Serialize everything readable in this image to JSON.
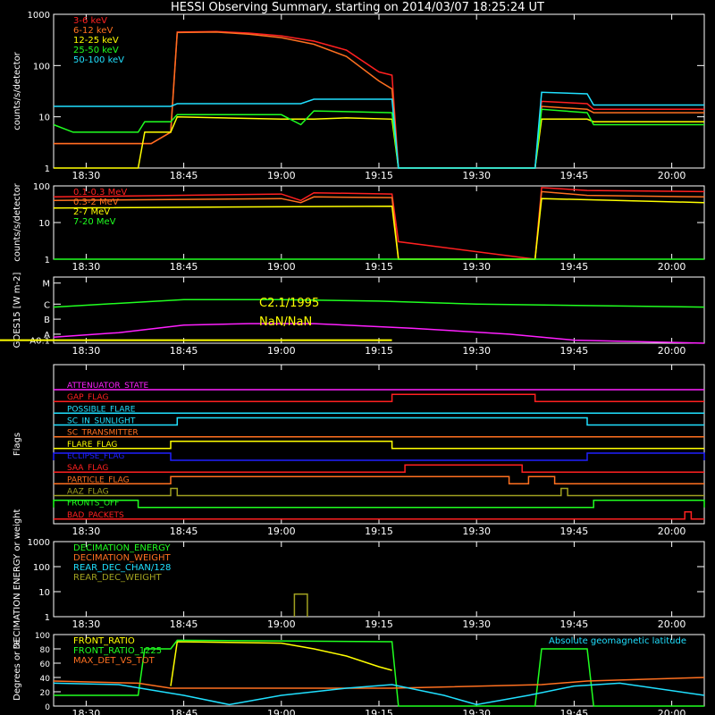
{
  "header": {
    "title": "HESSI Observing Summary, starting on 2014/03/07 18:25:24 UT"
  },
  "time_ticks": [
    "18:30",
    "18:45",
    "19:00",
    "19:15",
    "19:30",
    "19:45",
    "20:00"
  ],
  "colors": {
    "red": "#ff2020",
    "orange": "#ff7020",
    "yellow": "#ffff00",
    "green": "#20ff20",
    "cyan": "#20e0ff",
    "magenta": "#ff20ff",
    "blue": "#2020ff",
    "olive": "#a0a020",
    "white": "#ffffff"
  },
  "chart_data": [
    {
      "type": "line",
      "id": "lightcurves_low",
      "ylabel": "counts/s/detector",
      "yscale": "log",
      "ylim": [
        1,
        1000
      ],
      "yticks": [
        "1",
        "10",
        "100",
        "1000"
      ],
      "xlim": [
        "18:25",
        "20:05"
      ],
      "series": [
        {
          "name": "3-6 keV",
          "color": "#ff2020",
          "points": [
            [
              "18:25",
              3
            ],
            [
              "18:40",
              3
            ],
            [
              "18:43",
              5
            ],
            [
              "18:44",
              450
            ],
            [
              "18:50",
              460
            ],
            [
              "18:55",
              430
            ],
            [
              "19:00",
              380
            ],
            [
              "19:05",
              300
            ],
            [
              "19:10",
              200
            ],
            [
              "19:15",
              75
            ],
            [
              "19:17",
              65
            ],
            [
              "19:18",
              1
            ],
            [
              "19:39",
              1
            ],
            [
              "19:40",
              20
            ],
            [
              "19:47",
              18
            ],
            [
              "19:48",
              14
            ],
            [
              "20:05",
              14
            ]
          ]
        },
        {
          "name": "6-12 keV",
          "color": "#ff7020",
          "points": [
            [
              "18:25",
              3
            ],
            [
              "18:40",
              3
            ],
            [
              "18:43",
              5
            ],
            [
              "18:44",
              440
            ],
            [
              "18:50",
              450
            ],
            [
              "18:55",
              410
            ],
            [
              "19:00",
              350
            ],
            [
              "19:05",
              260
            ],
            [
              "19:10",
              150
            ],
            [
              "19:15",
              50
            ],
            [
              "19:17",
              35
            ],
            [
              "19:18",
              1
            ],
            [
              "19:39",
              1
            ],
            [
              "19:40",
              16
            ],
            [
              "19:47",
              14
            ],
            [
              "19:48",
              12
            ],
            [
              "20:05",
              12
            ]
          ]
        },
        {
          "name": "12-25 keV",
          "color": "#ffff00",
          "points": [
            [
              "18:25",
              1
            ],
            [
              "18:38",
              1
            ],
            [
              "18:39",
              5
            ],
            [
              "18:43",
              5
            ],
            [
              "18:44",
              10
            ],
            [
              "19:00",
              9
            ],
            [
              "19:05",
              9
            ],
            [
              "19:10",
              9.5
            ],
            [
              "19:17",
              9
            ],
            [
              "19:18",
              1
            ],
            [
              "19:39",
              1
            ],
            [
              "19:40",
              9
            ],
            [
              "19:47",
              9
            ],
            [
              "19:48",
              8
            ],
            [
              "20:05",
              8
            ]
          ]
        },
        {
          "name": "25-50 keV",
          "color": "#20ff20",
          "points": [
            [
              "18:25",
              7
            ],
            [
              "18:28",
              5
            ],
            [
              "18:38",
              5
            ],
            [
              "18:39",
              8
            ],
            [
              "18:43",
              8
            ],
            [
              "18:44",
              11
            ],
            [
              "19:00",
              11
            ],
            [
              "19:03",
              7
            ],
            [
              "19:05",
              13
            ],
            [
              "19:17",
              12
            ],
            [
              "19:18",
              1
            ],
            [
              "19:39",
              1
            ],
            [
              "19:40",
              14
            ],
            [
              "19:47",
              12
            ],
            [
              "19:48",
              7
            ],
            [
              "20:05",
              7
            ]
          ]
        },
        {
          "name": "50-100 keV",
          "color": "#20e0ff",
          "points": [
            [
              "18:25",
              16
            ],
            [
              "18:43",
              16
            ],
            [
              "18:44",
              18
            ],
            [
              "19:03",
              18
            ],
            [
              "19:05",
              22
            ],
            [
              "19:17",
              22
            ],
            [
              "19:18",
              1
            ],
            [
              "19:39",
              1
            ],
            [
              "19:40",
              30
            ],
            [
              "19:47",
              28
            ],
            [
              "19:48",
              17
            ],
            [
              "20:05",
              17
            ]
          ]
        }
      ]
    },
    {
      "type": "line",
      "id": "lightcurves_high",
      "ylabel": "counts/s/detector",
      "yscale": "log",
      "ylim": [
        1,
        100
      ],
      "yticks": [
        "1",
        "10",
        "100"
      ],
      "xlim": [
        "18:25",
        "20:05"
      ],
      "series": [
        {
          "name": "0.1-0.3 MeV",
          "color": "#ff2020",
          "points": [
            [
              "18:25",
              50
            ],
            [
              "19:00",
              60
            ],
            [
              "19:03",
              40
            ],
            [
              "19:05",
              65
            ],
            [
              "19:17",
              60
            ],
            [
              "19:18",
              3
            ],
            [
              "19:39",
              1
            ],
            [
              "19:40",
              90
            ],
            [
              "19:47",
              75
            ],
            [
              "20:05",
              70
            ]
          ]
        },
        {
          "name": "0.3-2 MeV",
          "color": "#ff7020",
          "points": [
            [
              "18:25",
              40
            ],
            [
              "19:00",
              45
            ],
            [
              "19:03",
              35
            ],
            [
              "19:05",
              50
            ],
            [
              "19:17",
              48
            ],
            [
              "19:18",
              1
            ],
            [
              "19:39",
              1
            ],
            [
              "19:40",
              70
            ],
            [
              "19:47",
              55
            ],
            [
              "20:05",
              50
            ]
          ]
        },
        {
          "name": "2-7 MeV",
          "color": "#ffff00",
          "points": [
            [
              "18:25",
              25
            ],
            [
              "19:17",
              28
            ],
            [
              "19:18",
              1
            ],
            [
              "19:39",
              1
            ],
            [
              "19:40",
              45
            ],
            [
              "20:05",
              35
            ]
          ]
        },
        {
          "name": "7-20 MeV",
          "color": "#20ff20",
          "points": [
            [
              "18:25",
              1
            ],
            [
              "20:05",
              1
            ]
          ]
        }
      ]
    },
    {
      "type": "line",
      "id": "goes",
      "ylabel": "GOES15 [W m-2]",
      "yscale": "log",
      "yticks": [
        "A0.1",
        "A",
        "B",
        "C",
        "M"
      ],
      "annotations": [
        "C2.1/1995",
        "NaN/NaN"
      ],
      "series": [
        {
          "name": "long",
          "color": "#20ff20",
          "points": [
            [
              "18:25",
              -5.8
            ],
            [
              "18:45",
              -5.3
            ],
            [
              "19:00",
              -5.3
            ],
            [
              "19:15",
              -5.4
            ],
            [
              "19:30",
              -5.6
            ],
            [
              "20:05",
              -5.8
            ]
          ]
        },
        {
          "name": "short",
          "color": "#ff20ff",
          "points": [
            [
              "18:25",
              -7.8
            ],
            [
              "18:35",
              -7.5
            ],
            [
              "18:45",
              -7.0
            ],
            [
              "18:55",
              -6.9
            ],
            [
              "19:05",
              -6.9
            ],
            [
              "19:20",
              -7.2
            ],
            [
              "19:35",
              -7.6
            ],
            [
              "19:45",
              -8.0
            ],
            [
              "20:05",
              -8.2
            ]
          ]
        },
        {
          "name": "flat",
          "color": "#ffff00",
          "points": [
            [
              "18:25",
              -8.0
            ],
            [
              "19:17",
              -8.0
            ]
          ]
        }
      ]
    },
    {
      "type": "line",
      "id": "flags",
      "ylabel": "Flags",
      "series": [
        {
          "name": "ATTENUATOR_STATE",
          "color": "#ff20ff",
          "segments": []
        },
        {
          "name": "GAP_FLAG",
          "color": "#ff2020",
          "segments": [
            [
              "19:17",
              "19:39"
            ]
          ]
        },
        {
          "name": "POSSIBLE_FLARE",
          "color": "#20e0ff",
          "segments": []
        },
        {
          "name": "SC_IN_SUNLIGHT",
          "color": "#20e0ff",
          "segments": [
            [
              "18:44",
              "19:47"
            ]
          ]
        },
        {
          "name": "SC_TRANSMITTER",
          "color": "#ff7020",
          "segments": []
        },
        {
          "name": "FLARE_FLAG",
          "color": "#ffff00",
          "segments": [
            [
              "18:43",
              "19:17"
            ]
          ]
        },
        {
          "name": "ECLIPSE_FLAG",
          "color": "#2020ff",
          "segments": [
            [
              "18:25",
              "18:43"
            ],
            [
              "19:47",
              "20:05"
            ]
          ]
        },
        {
          "name": "SAA_FLAG",
          "color": "#ff2020",
          "segments": [
            [
              "19:19",
              "19:37"
            ]
          ]
        },
        {
          "name": "PARTICLE_FLAG",
          "color": "#ff7020",
          "segments": [
            [
              "18:43",
              "19:35"
            ],
            [
              "19:38",
              "19:42"
            ]
          ]
        },
        {
          "name": "AAZ_FLAG",
          "color": "#a0a020",
          "segments": [
            [
              "18:43",
              "18:44"
            ],
            [
              "19:43",
              "19:44"
            ]
          ]
        },
        {
          "name": "FRONTS_OFF",
          "color": "#20ff20",
          "segments": [
            [
              "18:25",
              "18:38"
            ],
            [
              "19:48",
              "20:05"
            ]
          ]
        },
        {
          "name": "BAD_PACKETS",
          "color": "#ff2020",
          "segments": [
            [
              "20:02",
              "20:03"
            ]
          ]
        }
      ]
    },
    {
      "type": "line",
      "id": "decimation",
      "ylabel": "DECIMATION ENERGY or weight",
      "yscale": "log",
      "ylim": [
        1,
        1000
      ],
      "yticks": [
        "1",
        "10",
        "100",
        "1000"
      ],
      "series": [
        {
          "name": "DECIMATION_ENERGY",
          "color": "#20ff20",
          "points": []
        },
        {
          "name": "DECIMATION_WEIGHT",
          "color": "#ff7020",
          "points": []
        },
        {
          "name": "REAR_DEC_CHAN/128",
          "color": "#20e0ff",
          "points": []
        },
        {
          "name": "REAR_DEC_WEIGHT",
          "color": "#a0a020",
          "points": [
            [
              "19:02",
              1
            ],
            [
              "19:02",
              8
            ],
            [
              "19:04",
              8
            ],
            [
              "19:04",
              1
            ]
          ]
        }
      ]
    },
    {
      "type": "line",
      "id": "ratios",
      "ylabel": "Degrees or %",
      "ylim": [
        0,
        100
      ],
      "yticks": [
        "0",
        "20",
        "40",
        "60",
        "80",
        "100"
      ],
      "legend_right": "Absolute geomagnetic latitude",
      "series": [
        {
          "name": "FRONT_RATIO",
          "color": "#ffff00",
          "points": [
            [
              "18:43",
              28
            ],
            [
              "18:44",
              90
            ],
            [
              "19:00",
              88
            ],
            [
              "19:05",
              80
            ],
            [
              "19:10",
              70
            ],
            [
              "19:15",
              55
            ],
            [
              "19:17",
              50
            ]
          ]
        },
        {
          "name": "FRONT_RATIO_1225",
          "color": "#20ff20",
          "points": [
            [
              "18:25",
              15
            ],
            [
              "18:38",
              15
            ],
            [
              "18:39",
              80
            ],
            [
              "18:43",
              80
            ],
            [
              "18:44",
              92
            ],
            [
              "19:17",
              90
            ],
            [
              "19:18",
              0
            ],
            [
              "19:39",
              0
            ],
            [
              "19:40",
              80
            ],
            [
              "19:47",
              80
            ],
            [
              "19:48",
              0
            ],
            [
              "20:05",
              0
            ]
          ]
        },
        {
          "name": "MAX_DET_VS_TOT",
          "color": "#ff7020",
          "points": [
            [
              "18:25",
              35
            ],
            [
              "18:38",
              32
            ],
            [
              "18:43",
              25
            ],
            [
              "19:17",
              25
            ],
            [
              "19:40",
              30
            ],
            [
              "19:47",
              35
            ],
            [
              "20:05",
              40
            ]
          ]
        },
        {
          "name": "Absolute geomagnetic latitude",
          "color": "#20e0ff",
          "points": [
            [
              "18:25",
              32
            ],
            [
              "18:35",
              30
            ],
            [
              "18:45",
              15
            ],
            [
              "18:52",
              2
            ],
            [
              "19:00",
              15
            ],
            [
              "19:10",
              25
            ],
            [
              "19:17",
              30
            ],
            [
              "19:25",
              15
            ],
            [
              "19:30",
              2
            ],
            [
              "19:38",
              15
            ],
            [
              "19:45",
              28
            ],
            [
              "19:52",
              32
            ],
            [
              "20:05",
              15
            ]
          ]
        }
      ]
    }
  ]
}
